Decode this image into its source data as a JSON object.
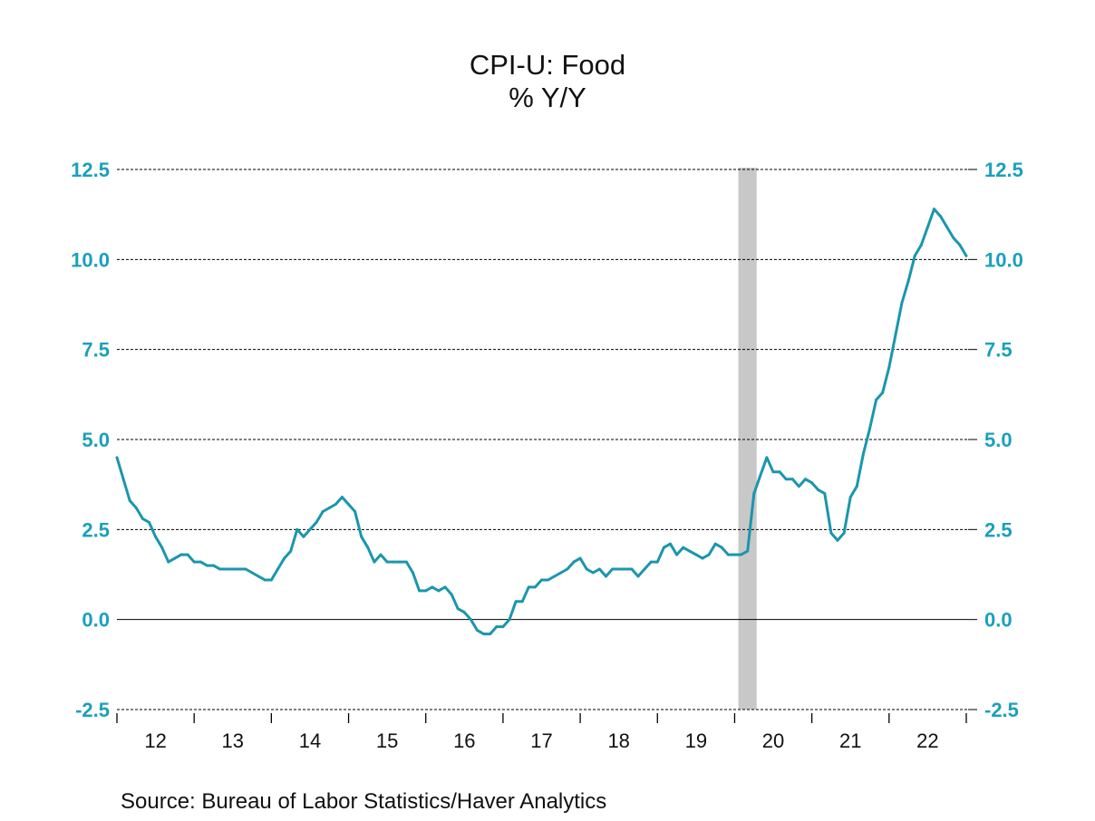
{
  "chart_data": {
    "type": "line",
    "title": "CPI-U: Food",
    "subtitle": "% Y/Y",
    "source": "Source:  Bureau of Labor Statistics/Haver Analytics",
    "x_start": "2012-01",
    "x_end": "2023-01",
    "frequency": "monthly",
    "xtick_labels": [
      "12",
      "13",
      "14",
      "15",
      "16",
      "17",
      "18",
      "19",
      "20",
      "21",
      "22"
    ],
    "ytick_labels": [
      "-2.5",
      "0.0",
      "2.5",
      "5.0",
      "7.5",
      "10.0",
      "12.5"
    ],
    "ylim": [
      -2.5,
      12.5
    ],
    "grid": "horizontal dashed",
    "recession_shading": {
      "start": "2020-02",
      "end": "2020-04",
      "color": "#c8c8c8"
    },
    "line_color": "#1a96ad",
    "tick_color": "#1aa0bd",
    "series": [
      {
        "values": [
          4.5,
          3.9,
          3.3,
          3.1,
          2.8,
          2.7,
          2.3,
          2.0,
          1.6,
          1.7,
          1.8,
          1.8,
          1.6,
          1.6,
          1.5,
          1.5,
          1.4,
          1.4,
          1.4,
          1.4,
          1.4,
          1.3,
          1.2,
          1.1,
          1.1,
          1.4,
          1.7,
          1.9,
          2.5,
          2.3,
          2.5,
          2.7,
          3.0,
          3.1,
          3.2,
          3.4,
          3.2,
          3.0,
          2.3,
          2.0,
          1.6,
          1.8,
          1.6,
          1.6,
          1.6,
          1.6,
          1.3,
          0.8,
          0.8,
          0.9,
          0.8,
          0.9,
          0.7,
          0.3,
          0.2,
          0.0,
          -0.3,
          -0.4,
          -0.4,
          -0.2,
          -0.2,
          0.0,
          0.5,
          0.5,
          0.9,
          0.9,
          1.1,
          1.1,
          1.2,
          1.3,
          1.4,
          1.6,
          1.7,
          1.4,
          1.3,
          1.4,
          1.2,
          1.4,
          1.4,
          1.4,
          1.4,
          1.2,
          1.4,
          1.6,
          1.6,
          2.0,
          2.1,
          1.8,
          2.0,
          1.9,
          1.8,
          1.7,
          1.8,
          2.1,
          2.0,
          1.8,
          1.8,
          1.8,
          1.9,
          3.5,
          4.0,
          4.5,
          4.1,
          4.1,
          3.9,
          3.9,
          3.7,
          3.9,
          3.8,
          3.6,
          3.5,
          2.4,
          2.2,
          2.4,
          3.4,
          3.7,
          4.6,
          5.3,
          6.1,
          6.3,
          7.0,
          7.9,
          8.8,
          9.4,
          10.1,
          10.4,
          10.9,
          11.4,
          11.2,
          10.9,
          10.6,
          10.4,
          10.1
        ]
      }
    ]
  }
}
